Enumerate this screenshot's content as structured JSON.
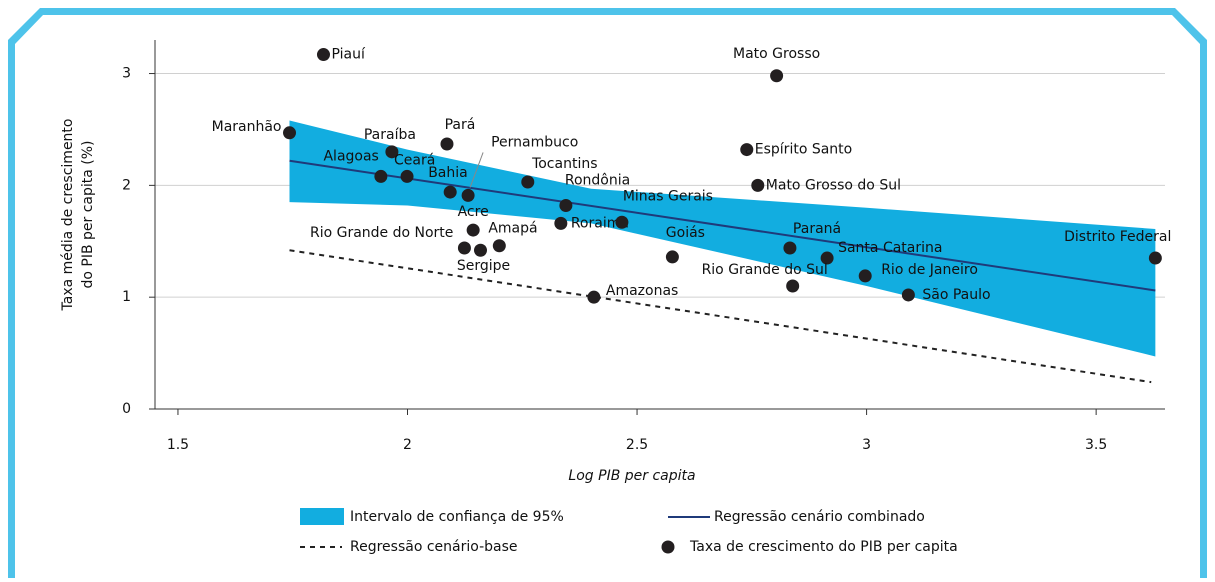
{
  "chart_data": {
    "type": "scatter",
    "y_label": [
      "Taxa média de crescimento",
      "do PIB per capita (%)"
    ],
    "x_label": "Log PIB per capita",
    "xlim": [
      1.45,
      3.65
    ],
    "ylim": [
      0,
      3.3
    ],
    "xticks": [
      1.5,
      2,
      2.5,
      3,
      3.5
    ],
    "yticks": [
      0,
      1,
      2,
      3
    ],
    "grid": true,
    "band": {
      "name": "Intervalo de confiança de 95%",
      "color": "#12ade0",
      "x": [
        1.743,
        2.0,
        2.4,
        3.0,
        3.629
      ],
      "lower": [
        1.85,
        1.82,
        1.66,
        1.1,
        0.47
      ],
      "upper": [
        2.58,
        2.32,
        1.97,
        1.8,
        1.61
      ]
    },
    "lines": [
      {
        "name": "Regressão cenário combinado",
        "color": "#1f3a7a",
        "dashed": false,
        "x": [
          1.743,
          3.629
        ],
        "values": [
          2.22,
          1.06
        ]
      },
      {
        "name": "Regressão cenário-base",
        "color": "#222222",
        "dashed": true,
        "x": [
          1.743,
          3.62
        ],
        "values": [
          1.42,
          0.24
        ]
      }
    ],
    "points": {
      "name": "Taxa de crescimento do PIB per capita",
      "color": "#231f20",
      "labels": [
        "Piauí",
        "Mato Grosso",
        "Maranhão",
        "Pará",
        "Paraíba",
        "Espírito Santo",
        "Alagoas",
        "Ceará",
        "Tocantins",
        "Mato Grosso do Sul",
        "Bahia",
        "Pernambuco",
        "Rondônia",
        "Acre",
        "Roraima",
        "Minas Gerais",
        "Rio Grande do Norte",
        "Sergipe",
        "Amapá",
        "Goiás",
        "Paraná",
        "Santa Catarina",
        "Distrito Federal",
        "Rio de Janeiro",
        "Rio Grande do Sul",
        "São Paulo",
        "Amazonas"
      ],
      "x": [
        1.817,
        2.804,
        1.743,
        2.086,
        1.966,
        2.739,
        1.942,
        1.999,
        2.262,
        2.763,
        2.093,
        2.132,
        2.345,
        2.143,
        2.334,
        2.467,
        2.124,
        2.159,
        2.2,
        2.577,
        2.833,
        2.914,
        3.629,
        2.997,
        2.839,
        3.091,
        2.406
      ],
      "values": [
        3.17,
        2.98,
        2.47,
        2.37,
        2.3,
        2.32,
        2.08,
        2.08,
        2.03,
        2.0,
        1.94,
        1.91,
        1.82,
        1.6,
        1.66,
        1.67,
        1.44,
        1.42,
        1.46,
        1.36,
        1.44,
        1.35,
        1.35,
        1.19,
        1.1,
        1.02,
        1.0
      ]
    }
  }
}
